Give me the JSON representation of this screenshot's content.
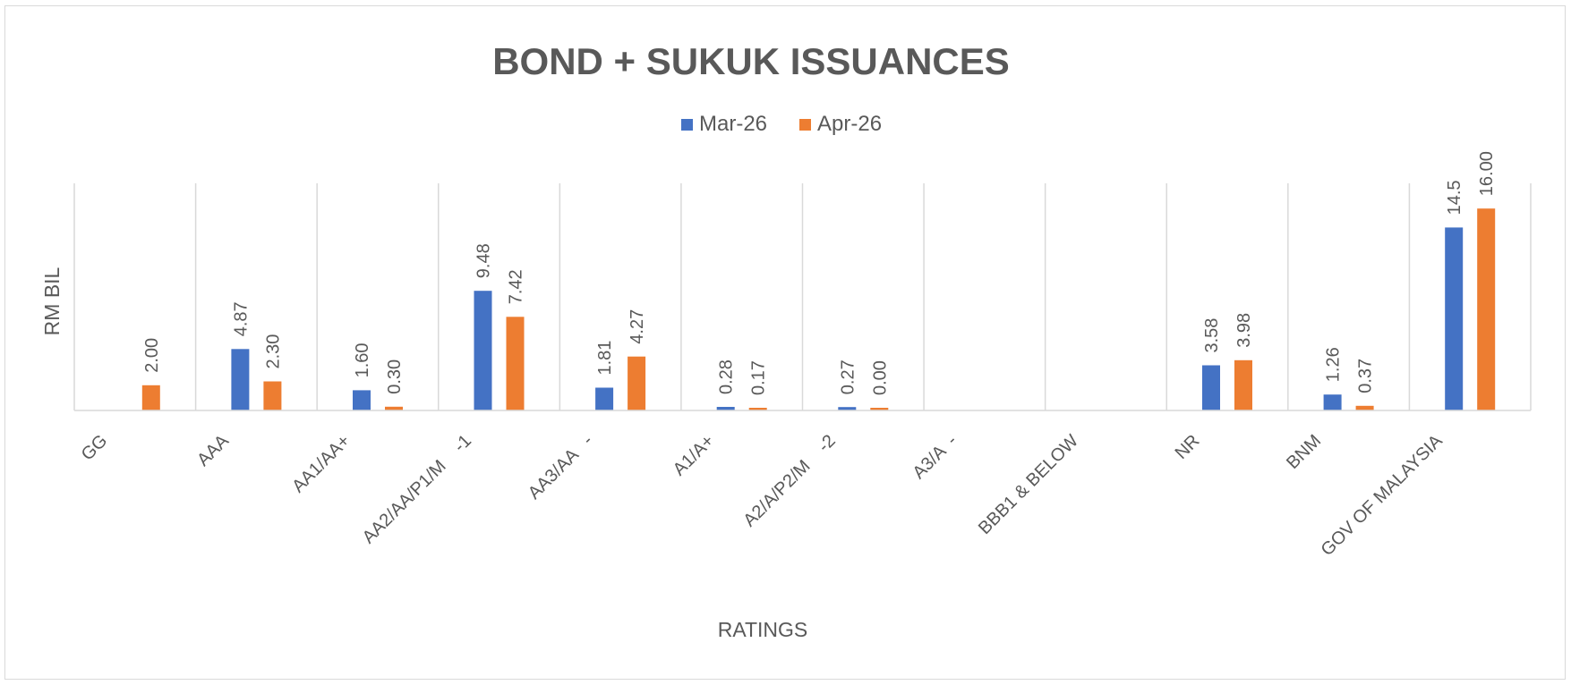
{
  "chart_data": {
    "type": "bar",
    "title": "BOND + SUKUK ISSUANCES",
    "xlabel": "RATINGS",
    "ylabel": "RM BIL",
    "categories": [
      "GG",
      "AAA",
      "AA1/AA+",
      "AA2/AA/P1/M    -1",
      "AA3/AA   -",
      "A1/A+",
      "A2/A/P2/M    -2",
      "A3/A  -",
      "BBB1 & BELOW",
      "NR",
      "BNM",
      "GOV OF MALAYSIA"
    ],
    "series": [
      {
        "name": "Mar-26",
        "color": "#4472c4",
        "values": [
          null,
          4.87,
          1.6,
          9.48,
          1.81,
          0.28,
          0.27,
          null,
          null,
          3.58,
          1.26,
          14.5
        ],
        "labels": [
          "",
          "4.87",
          "1.60",
          "9.48",
          "1.81",
          "0.28",
          "0.27",
          "",
          "",
          "3.58",
          "1.26",
          "14.5"
        ]
      },
      {
        "name": "Apr-26",
        "color": "#ed7d31",
        "values": [
          2.0,
          2.3,
          0.3,
          7.42,
          4.27,
          0.17,
          0.0,
          null,
          null,
          3.98,
          0.37,
          16.0
        ],
        "labels": [
          "2.00",
          "2.30",
          "0.30",
          "7.42",
          "4.27",
          "0.17",
          "0.00",
          "",
          "",
          "3.98",
          "0.37",
          "16.00"
        ]
      }
    ],
    "ylim": [
      0,
      18
    ],
    "grid": "vertical category separators",
    "legend": "top-center",
    "data_labels": "rotated vertical above bars"
  }
}
